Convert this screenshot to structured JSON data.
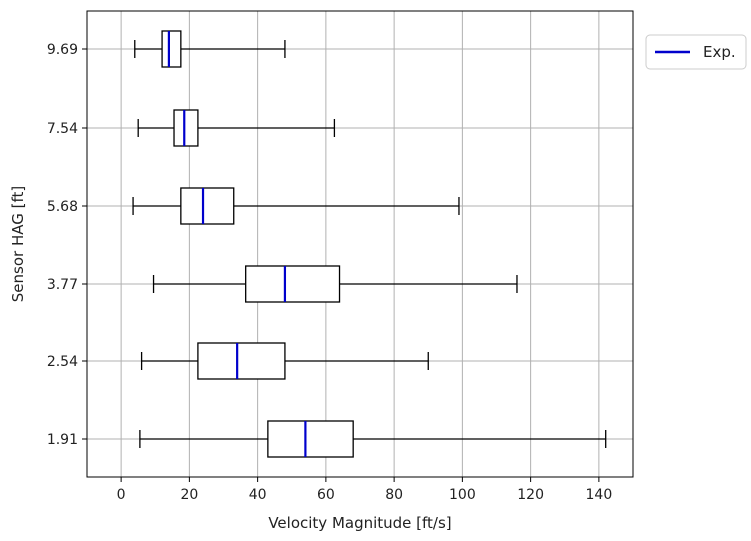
{
  "chart_data": {
    "type": "boxplot",
    "orientation": "horizontal",
    "xlabel": "Velocity Magnitude [ft/s]",
    "ylabel": "Sensor HAG [ft]",
    "xlim": [
      -10,
      150
    ],
    "xticks": [
      0,
      20,
      40,
      60,
      80,
      100,
      120,
      140
    ],
    "grid": true,
    "legend": {
      "placement": "outside-top-right",
      "entries": [
        {
          "label": "Exp.",
          "color": "#0000cc"
        }
      ]
    },
    "categories": [
      "1.91",
      "2.54",
      "3.77",
      "5.68",
      "7.54",
      "9.69"
    ],
    "boxes": [
      {
        "category": "1.91",
        "whisker_low": 5.5,
        "q1": 43,
        "median": 54,
        "q3": 68,
        "whisker_high": 142
      },
      {
        "category": "2.54",
        "whisker_low": 6,
        "q1": 22.5,
        "median": 34,
        "q3": 48,
        "whisker_high": 90
      },
      {
        "category": "3.77",
        "whisker_low": 9.5,
        "q1": 36.5,
        "median": 48,
        "q3": 64,
        "whisker_high": 116
      },
      {
        "category": "5.68",
        "whisker_low": 3.5,
        "q1": 17.5,
        "median": 24,
        "q3": 33,
        "whisker_high": 99
      },
      {
        "category": "7.54",
        "whisker_low": 5,
        "q1": 15.5,
        "median": 18.5,
        "q3": 22.5,
        "whisker_high": 62.5
      },
      {
        "category": "9.69",
        "whisker_low": 4,
        "q1": 12,
        "median": 14,
        "q3": 17.5,
        "whisker_high": 48
      }
    ],
    "colors": {
      "median": "#0000cc",
      "box": "#000000",
      "grid": "#b0b0b0"
    }
  }
}
